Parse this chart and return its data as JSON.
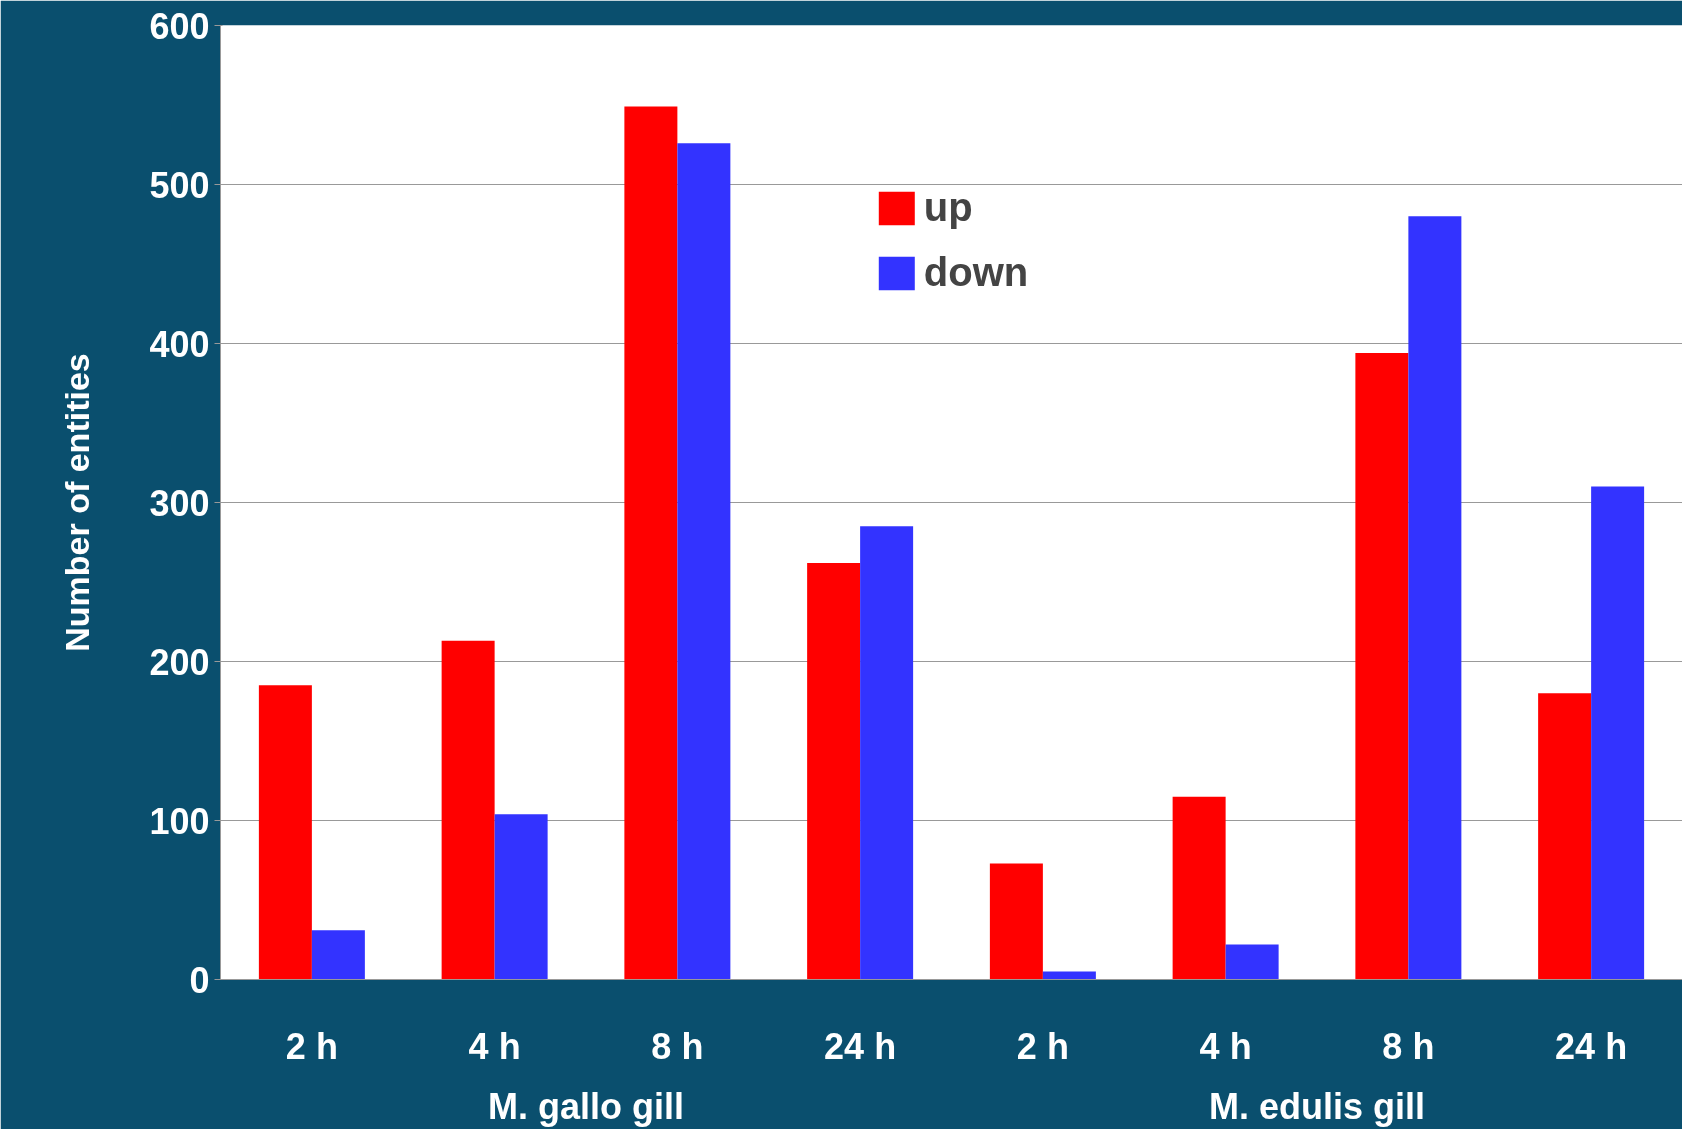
{
  "chart_data": {
    "type": "bar",
    "ylabel": "Number of entities",
    "categories": [
      "2 h",
      "4 h",
      "8 h",
      "24 h",
      "2 h",
      "4 h",
      "8 h",
      "24 h"
    ],
    "series": [
      {
        "name": "up",
        "color": "#ff0000",
        "values": [
          185,
          213,
          549,
          262,
          73,
          115,
          394,
          180
        ]
      },
      {
        "name": "down",
        "color": "#3333ff",
        "values": [
          31,
          104,
          526,
          285,
          5,
          22,
          480,
          310
        ]
      }
    ],
    "annotations": [
      "M. gallo gill",
      "M. edulis gill"
    ],
    "ylim": [
      0,
      600
    ],
    "yticks": [
      0,
      100,
      200,
      300,
      400,
      500,
      600
    ],
    "grid": "y",
    "legend": "top"
  }
}
